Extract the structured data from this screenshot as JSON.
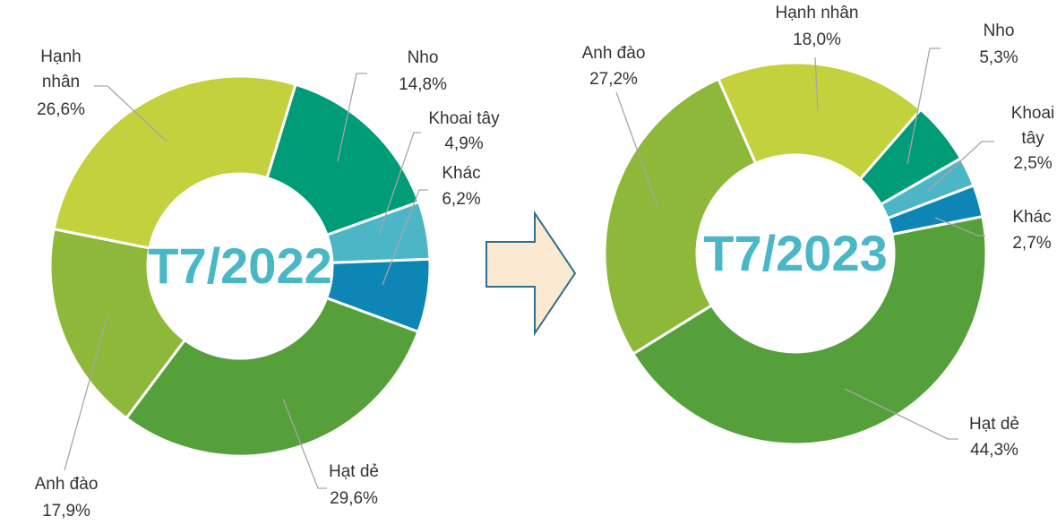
{
  "chart_data": [
    {
      "type": "donut",
      "title": "T7/2022",
      "categories": [
        "Nho",
        "Khoai tây",
        "Khác",
        "Hạt dẻ",
        "Anh đào",
        "Hạnh nhân"
      ],
      "values": [
        14.8,
        4.9,
        6.2,
        29.6,
        17.9,
        26.6
      ],
      "value_labels": [
        "14,8%",
        "4,9%",
        "6,2%",
        "29,6%",
        "17,9%",
        "26,6%"
      ],
      "colors": [
        "#009b77",
        "#4db6c6",
        "#0e86b5",
        "#55a03a",
        "#8db83a",
        "#c3d13d"
      ]
    },
    {
      "type": "donut",
      "title": "T7/2023",
      "categories": [
        "Nho",
        "Khoai tây",
        "Khác",
        "Hạt dẻ",
        "Anh đào",
        "Hạnh nhân"
      ],
      "values": [
        5.3,
        2.5,
        2.7,
        44.3,
        27.2,
        18.0
      ],
      "value_labels": [
        "5,3%",
        "2,5%",
        "2,7%",
        "44,3%",
        "27,2%",
        "18,0%"
      ],
      "colors": [
        "#009b77",
        "#4db6c6",
        "#0e86b5",
        "#55a03a",
        "#8db83a",
        "#c3d13d"
      ]
    }
  ]
}
